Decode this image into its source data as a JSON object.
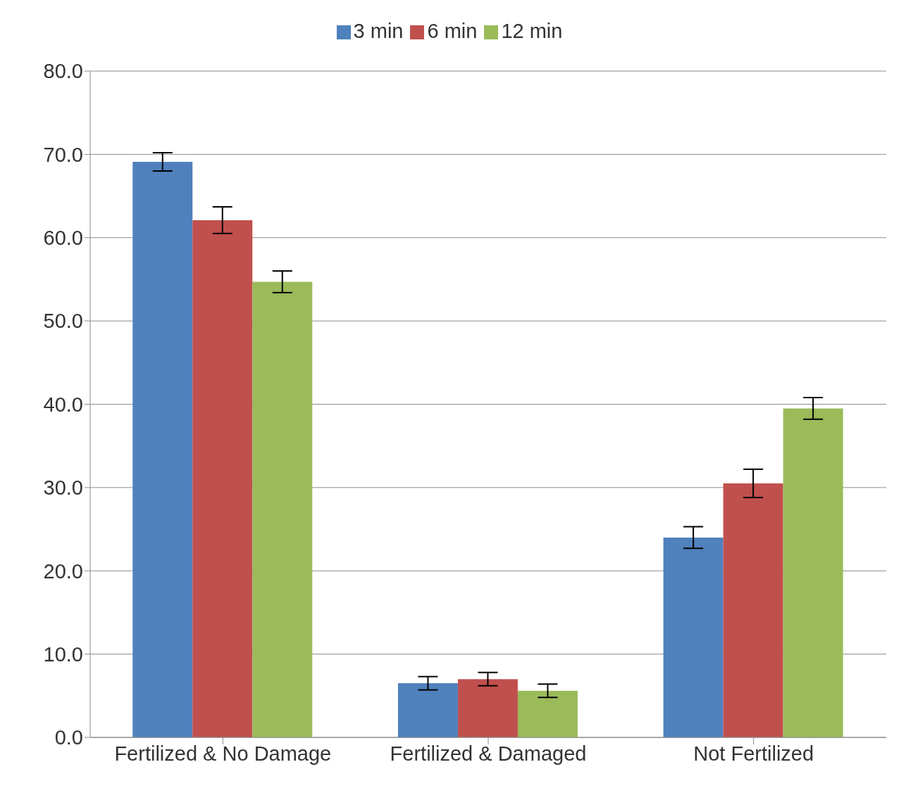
{
  "chart_data": {
    "type": "bar",
    "categories": [
      "Fertilized & No Damage",
      "Fertilized & Damaged",
      "Not Fertilized"
    ],
    "series": [
      {
        "name": "3 min",
        "color": "#4f81bd",
        "values": [
          69.1,
          6.5,
          24.0
        ],
        "errors": [
          1.1,
          0.8,
          1.3
        ]
      },
      {
        "name": "6 min",
        "color": "#c0504d",
        "values": [
          62.1,
          7.0,
          30.5
        ],
        "errors": [
          1.6,
          0.8,
          1.7
        ]
      },
      {
        "name": "12 min",
        "color": "#9bbb59",
        "values": [
          54.7,
          5.6,
          39.5
        ],
        "errors": [
          1.3,
          0.8,
          1.3
        ]
      }
    ],
    "ylim": [
      0,
      80
    ],
    "yticks": [
      {
        "value": 0,
        "label": "0.0"
      },
      {
        "value": 10,
        "label": "10.0"
      },
      {
        "value": 20,
        "label": "20.0"
      },
      {
        "value": 30,
        "label": "30.0"
      },
      {
        "value": 40,
        "label": "40.0"
      },
      {
        "value": 50,
        "label": "50.0"
      },
      {
        "value": 60,
        "label": "60.0"
      },
      {
        "value": 70,
        "label": "70.0"
      },
      {
        "value": 80,
        "label": "80.0"
      }
    ],
    "grid": "y",
    "legend": "top"
  }
}
